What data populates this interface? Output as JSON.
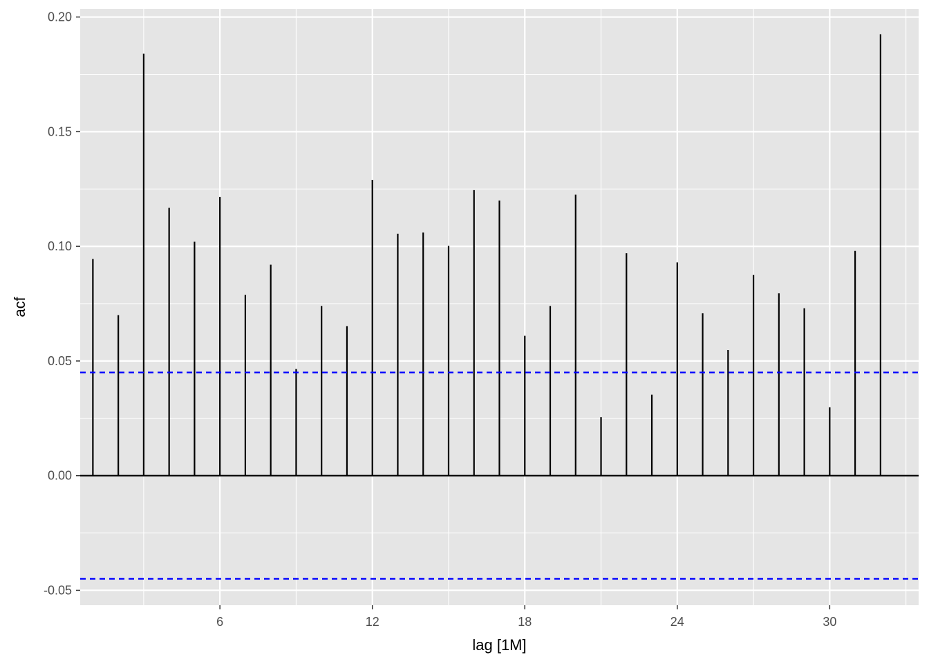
{
  "chart_data": {
    "type": "bar",
    "subtype": "acf-correlogram",
    "title": "",
    "xlabel": "lag [1M]",
    "ylabel": "acf",
    "x_ticks": [
      6,
      12,
      18,
      24,
      30
    ],
    "y_ticks": [
      "-0.05",
      "0.00",
      "0.05",
      "0.10",
      "0.15",
      "0.20"
    ],
    "y_tick_values": [
      -0.05,
      0.0,
      0.05,
      0.1,
      0.15,
      0.2
    ],
    "xlim": [
      0.5,
      33.5
    ],
    "ylim": [
      -0.0565,
      0.2035
    ],
    "grid": true,
    "lags": [
      1,
      2,
      3,
      4,
      5,
      6,
      7,
      8,
      9,
      10,
      11,
      12,
      13,
      14,
      15,
      16,
      17,
      18,
      19,
      20,
      21,
      22,
      23,
      24,
      25,
      26,
      27,
      28,
      29,
      30,
      31,
      32
    ],
    "values": [
      0.0945,
      0.07,
      0.184,
      0.1168,
      0.102,
      0.1215,
      0.0788,
      0.092,
      0.0465,
      0.074,
      0.0652,
      0.129,
      0.1055,
      0.106,
      0.1002,
      0.1245,
      0.12,
      0.061,
      0.074,
      0.1225,
      0.0255,
      0.097,
      0.0353,
      0.093,
      0.0708,
      0.0548,
      0.0875,
      0.0795,
      0.073,
      0.0298,
      0.098,
      0.1925
    ],
    "confidence_bounds": [
      0.045,
      -0.045
    ],
    "colors": {
      "panel_background": "#e5e5e5",
      "grid": "#ffffff",
      "bar": "#000000",
      "bound_line": "#0000ff"
    }
  }
}
